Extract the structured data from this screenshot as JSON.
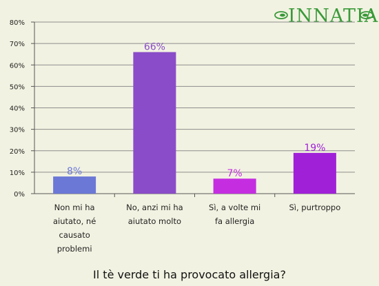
{
  "brand": {
    "name": "INNATIA",
    "color": "#3a9a3a"
  },
  "chart_data": {
    "type": "bar",
    "title": "Il tè verde ti ha provocato allergia?",
    "xlabel": "",
    "ylabel": "",
    "ylim": [
      0,
      80
    ],
    "yticks": [
      "0%",
      "10%",
      "20%",
      "30%",
      "40%",
      "50%",
      "60%",
      "70%",
      "80%"
    ],
    "grid": "horizontal",
    "categories": [
      [
        "Non mi ha",
        "aiutato, né",
        "causato",
        "problemi"
      ],
      [
        "No, anzi mi ha",
        "aiutato molto"
      ],
      [
        "Sì, a volte mi",
        "fa allergia"
      ],
      [
        "Sì, purtroppo"
      ]
    ],
    "values": [
      8,
      66,
      7,
      19
    ],
    "data_labels": [
      "8%",
      "66%",
      "7%",
      "19%"
    ],
    "colors": [
      "#6b78d6",
      "#8a4cc8",
      "#c42ee0",
      "#a020d8"
    ]
  }
}
